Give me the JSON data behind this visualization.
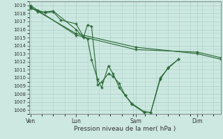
{
  "xlabel": "Pression niveau de la mer( hPa )",
  "background_color": "#cce8e0",
  "grid_color": "#aacfc8",
  "line_color": "#2a6835",
  "ylim": [
    1005.5,
    1019.5
  ],
  "yticks": [
    1006,
    1007,
    1008,
    1009,
    1010,
    1011,
    1012,
    1013,
    1014,
    1015,
    1016,
    1017,
    1018,
    1019
  ],
  "xtick_labels": [
    "Ven",
    "Lun",
    "Sam",
    "Dim"
  ],
  "xtick_positions": [
    35,
    103,
    192,
    283
  ],
  "xlim": [
    33,
    318
  ],
  "series": [
    {
      "x": [
        35,
        46,
        57,
        69,
        80,
        103,
        114,
        120,
        126,
        135,
        141,
        151,
        158,
        167,
        176,
        186,
        204,
        214,
        228,
        240,
        255
      ],
      "y": [
        1018.6,
        1018.4,
        1018.1,
        1018.2,
        1017.2,
        1016.7,
        1015.1,
        1014.8,
        1012.2,
        1009.8,
        1008.8,
        1011.5,
        1010.5,
        1008.8,
        1007.8,
        1006.7,
        1005.7,
        1005.7,
        1010.0,
        1011.2,
        1012.3
      ]
    },
    {
      "x": [
        35,
        46,
        57,
        69,
        103,
        114,
        120,
        126,
        135,
        141,
        151,
        158,
        167,
        176,
        186,
        204,
        214,
        228,
        240,
        255
      ],
      "y": [
        1018.8,
        1018.2,
        1018.2,
        1018.3,
        1016.0,
        1015.0,
        1016.6,
        1016.4,
        1009.1,
        1009.5,
        1010.5,
        1010.2,
        1009.3,
        1007.8,
        1006.8,
        1005.8,
        1005.7,
        1009.8,
        1011.3,
        1012.3
      ]
    },
    {
      "x": [
        35,
        103,
        192,
        283,
        318
      ],
      "y": [
        1018.8,
        1015.5,
        1013.8,
        1013.0,
        1012.3
      ]
    },
    {
      "x": [
        35,
        103,
        192,
        283,
        318
      ],
      "y": [
        1019.0,
        1015.3,
        1013.5,
        1013.2,
        1012.5
      ]
    }
  ]
}
